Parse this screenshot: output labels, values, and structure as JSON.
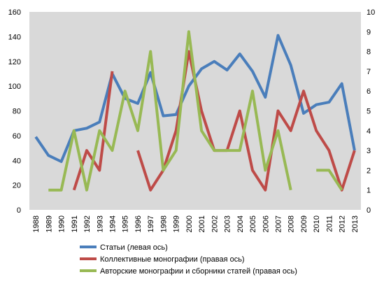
{
  "chart_data": {
    "type": "line",
    "title": "",
    "categories": [
      "1988",
      "1989",
      "1990",
      "1991",
      "1992",
      "1993",
      "1994",
      "1995",
      "1996",
      "1997",
      "1998",
      "1999",
      "2000",
      "2001",
      "2002",
      "2003",
      "2004",
      "2005",
      "2006",
      "2007",
      "2008",
      "2009",
      "2010",
      "2011",
      "2012",
      "2013"
    ],
    "y_left": {
      "range": [
        0,
        160
      ],
      "ticks": [
        0,
        20,
        40,
        60,
        80,
        100,
        120,
        140,
        160
      ]
    },
    "y_right": {
      "range": [
        0,
        10
      ],
      "ticks": [
        0,
        1,
        2,
        3,
        4,
        5,
        6,
        7,
        8,
        9,
        10
      ]
    },
    "grid": false,
    "plot_background": "#d9d9d9",
    "legend_position": "bottom",
    "series": [
      {
        "name": "Статьи (левая ось)",
        "axis": "left",
        "color": "#4a7ebb",
        "values": [
          59,
          44,
          39,
          64,
          66,
          71,
          110,
          90,
          86,
          111,
          76,
          77,
          100,
          114,
          120,
          113,
          126,
          112,
          91,
          141,
          117,
          78,
          85,
          87,
          102,
          48
        ]
      },
      {
        "name": "Коллективные монографии (правая ось)",
        "axis": "right",
        "color": "#be4b48",
        "values": [
          null,
          null,
          null,
          1,
          3,
          2,
          7,
          null,
          3,
          1,
          2,
          4,
          8,
          5,
          3,
          3,
          5,
          2,
          1,
          5,
          4,
          6,
          4,
          3,
          1,
          3
        ]
      },
      {
        "name": "Авторские монографии и сборники статей (правая ось)",
        "axis": "right",
        "color": "#98b954",
        "values": [
          null,
          1,
          1,
          4,
          1,
          4,
          3,
          6,
          4,
          8,
          2,
          3,
          9,
          4,
          3,
          3,
          3,
          6,
          2,
          4,
          1,
          null,
          2,
          2,
          1,
          null
        ]
      }
    ]
  }
}
